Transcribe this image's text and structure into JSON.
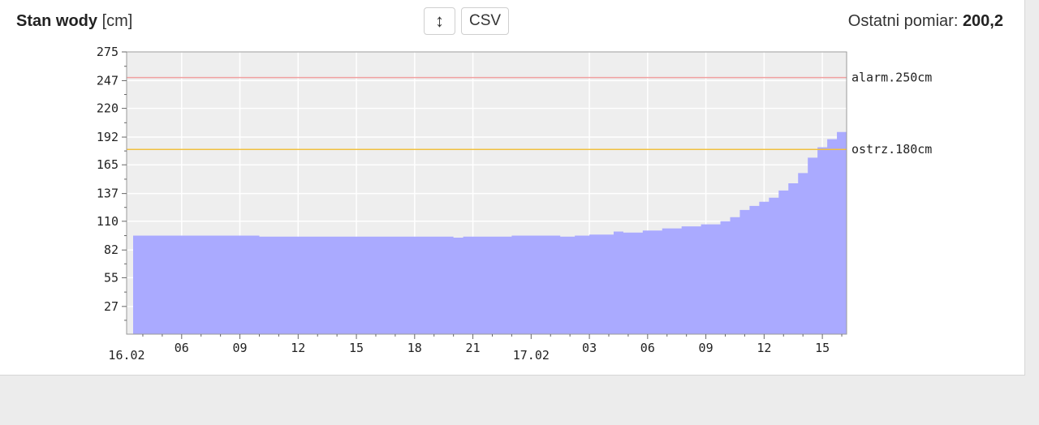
{
  "header": {
    "title": "Stan wody",
    "unit": "[cm]",
    "sort_icon": "↕",
    "csv_label": "CSV",
    "last_label": "Ostatni pomiar:",
    "last_value": "200,2"
  },
  "chart_data": {
    "type": "area",
    "title": "Stan wody [cm]",
    "xlabel": "",
    "ylabel": "",
    "ylim": [
      0,
      275
    ],
    "yticks": [
      27,
      55,
      82,
      110,
      137,
      165,
      192,
      220,
      247,
      275
    ],
    "x_range": [
      "16.02 03:30",
      "17.02 16:15"
    ],
    "x_ticks": [
      {
        "label": "06",
        "at": "16.02 06:00"
      },
      {
        "label": "09",
        "at": "16.02 09:00"
      },
      {
        "label": "12",
        "at": "16.02 12:00"
      },
      {
        "label": "15",
        "at": "16.02 15:00"
      },
      {
        "label": "18",
        "at": "16.02 18:00"
      },
      {
        "label": "21",
        "at": "16.02 21:00"
      },
      {
        "label": "03",
        "at": "17.02 03:00"
      },
      {
        "label": "06",
        "at": "17.02 06:00"
      },
      {
        "label": "09",
        "at": "17.02 09:00"
      },
      {
        "label": "12",
        "at": "17.02 12:00"
      },
      {
        "label": "15",
        "at": "17.02 15:00"
      }
    ],
    "date_labels": [
      {
        "label": "16.02",
        "at": "16.02 00:00"
      },
      {
        "label": "17.02",
        "at": "17.02 00:00"
      }
    ],
    "grid": true,
    "series": [
      {
        "points": [
          [
            "16.02 03:30",
            96
          ],
          [
            "16.02 10:00",
            95
          ],
          [
            "16.02 20:00",
            94
          ],
          [
            "16.02 20:30",
            95
          ],
          [
            "16.02 23:00",
            96
          ],
          [
            "17.02 01:30",
            95
          ],
          [
            "17.02 02:15",
            96
          ],
          [
            "17.02 03:00",
            97
          ],
          [
            "17.02 04:15",
            100
          ],
          [
            "17.02 04:45",
            99
          ],
          [
            "17.02 05:45",
            101
          ],
          [
            "17.02 06:45",
            103
          ],
          [
            "17.02 07:45",
            105
          ],
          [
            "17.02 08:45",
            107
          ],
          [
            "17.02 09:45",
            110
          ],
          [
            "17.02 10:15",
            114
          ],
          [
            "17.02 10:45",
            121
          ],
          [
            "17.02 11:15",
            125
          ],
          [
            "17.02 11:45",
            129
          ],
          [
            "17.02 12:15",
            133
          ],
          [
            "17.02 12:45",
            140
          ],
          [
            "17.02 13:15",
            147
          ],
          [
            "17.02 13:45",
            157
          ],
          [
            "17.02 14:15",
            172
          ],
          [
            "17.02 14:45",
            182
          ],
          [
            "17.02 15:15",
            190
          ],
          [
            "17.02 15:45",
            197
          ],
          [
            "17.02 16:15",
            200
          ]
        ],
        "color": "#aaaaff"
      }
    ],
    "thresholds": [
      {
        "label": "alarm.250cm",
        "value": 250,
        "color": "#f0a0a0"
      },
      {
        "label": "ostrz.180cm",
        "value": 180,
        "color": "#f0c040"
      }
    ]
  }
}
